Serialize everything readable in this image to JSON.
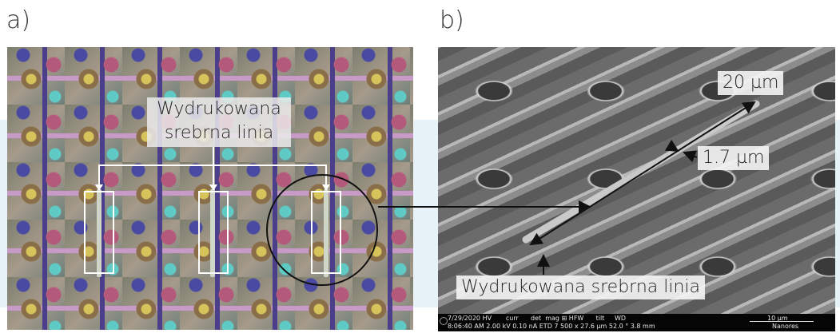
{
  "panels": {
    "a": {
      "label": "a)",
      "callout_line1": "Wydrukowana",
      "callout_line2": "srebrna linia"
    },
    "b": {
      "label": "b)",
      "length_label": "20 µm",
      "width_label": "1.7 µm",
      "bottom_label": "Wydrukowana srebrna linia",
      "sem_info": {
        "row1": "7/29/2020 HV       curr      det  mag ⊞ HFW      tilt     WD",
        "row2": "8:06:40 AM 2.00 kV 0.10 nA ETD 7 500 x 27.6 µm 52.0 ° 3.8 mm",
        "scale": "10 µm",
        "vendor": "Nanores"
      }
    }
  },
  "colors": {
    "background_band": "#e7f3f8",
    "annotation_white": "#ffffff",
    "annotation_black": "#111111"
  }
}
